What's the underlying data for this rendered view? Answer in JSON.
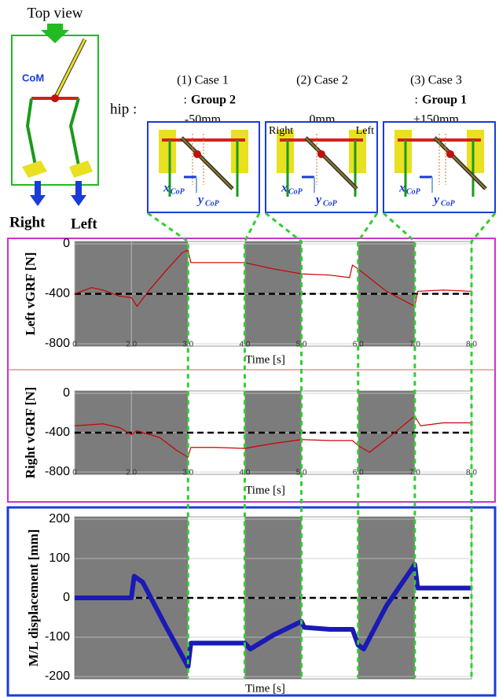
{
  "figure": {
    "top_view": "Top view",
    "com": "CoM",
    "right": "Right",
    "left": "Left",
    "hip": "hip :",
    "cases": [
      {
        "title": "(1)  Case 1",
        "group_prefix": ":",
        "group": "Group 2",
        "offset": "-50mm"
      },
      {
        "title": "(2)  Case 2",
        "offset": "0mm",
        "panel_right": "Right",
        "panel_left": "Left"
      },
      {
        "title": "(3)  Case 3",
        "group_prefix": ":",
        "group": "Group 1",
        "offset": "+150mm"
      }
    ],
    "x_cop": "x",
    "y_cop": "y",
    "cop_sub": "CoP"
  },
  "chart_data": [
    {
      "type": "line",
      "y_label": "Left vGRF [N]",
      "x_label": "Time [s]",
      "color": "#cc0000",
      "x": [
        1,
        1.3,
        1.5,
        1.8,
        2.0,
        2.1,
        2.3,
        2.6,
        2.9,
        3.0,
        3.05,
        3.5,
        4.0,
        4.5,
        5.0,
        5.5,
        5.85,
        5.9,
        6.0,
        6.5,
        7.0,
        7.05,
        7.5,
        8.0
      ],
      "values": [
        -400,
        -350,
        -370,
        -420,
        -430,
        -500,
        -380,
        -220,
        -70,
        -50,
        -150,
        -150,
        -150,
        -200,
        -240,
        -250,
        -270,
        -170,
        -200,
        -380,
        -500,
        -380,
        -370,
        -380
      ],
      "xlim": [
        1,
        8
      ],
      "ylim": [
        -800,
        0
      ],
      "xticks": [
        {
          "value": 1,
          "label": "0"
        },
        {
          "value": 2,
          "label": "2.0"
        },
        {
          "value": 3,
          "label": "3.0"
        },
        {
          "value": 4,
          "label": "4.0"
        },
        {
          "value": 5,
          "label": "5.0"
        },
        {
          "value": 6,
          "label": "6.0"
        },
        {
          "value": 7,
          "label": "7.0"
        },
        {
          "value": 8,
          "label": "8.0"
        }
      ],
      "yticks": [
        0,
        -400,
        -800
      ],
      "reference_line": -400,
      "shaded_intervals": [
        [
          1,
          3
        ],
        [
          4,
          5
        ],
        [
          6,
          7
        ]
      ],
      "grid": true
    },
    {
      "type": "line",
      "y_label": "Right vGRF [N]",
      "x_label": "Time [s]",
      "color": "#cc0000",
      "x": [
        1,
        1.5,
        1.8,
        2.0,
        2.1,
        2.5,
        2.8,
        3.0,
        3.05,
        3.5,
        4.0,
        4.5,
        5.0,
        5.5,
        5.9,
        6.0,
        6.2,
        6.6,
        7.0,
        7.1,
        7.5,
        8.0
      ],
      "values": [
        -330,
        -310,
        -350,
        -420,
        -380,
        -450,
        -580,
        -650,
        -550,
        -550,
        -560,
        -510,
        -470,
        -480,
        -480,
        -530,
        -600,
        -420,
        -230,
        -330,
        -300,
        -300
      ],
      "xlim": [
        1,
        8
      ],
      "ylim": [
        -800,
        0
      ],
      "xticks": [
        {
          "value": 1,
          "label": "0"
        },
        {
          "value": 2,
          "label": "2.0"
        },
        {
          "value": 3,
          "label": "3.0"
        },
        {
          "value": 4,
          "label": "4.0"
        },
        {
          "value": 5,
          "label": "5.0"
        },
        {
          "value": 6,
          "label": "6.0"
        },
        {
          "value": 7,
          "label": "7.0"
        },
        {
          "value": 8,
          "label": "8.0"
        }
      ],
      "yticks": [
        0,
        -400,
        -800
      ],
      "reference_line": -400,
      "shaded_intervals": [
        [
          1,
          3
        ],
        [
          4,
          5
        ],
        [
          6,
          7
        ]
      ],
      "grid": true
    },
    {
      "type": "line",
      "y_label": "M/L displacement  [mm]",
      "x_label": "Time [s]",
      "color": "#1a1ab4",
      "x": [
        1,
        2.0,
        2.05,
        2.2,
        2.6,
        3.0,
        3.05,
        3.5,
        4.0,
        4.1,
        4.5,
        5.0,
        5.05,
        5.5,
        5.9,
        6.0,
        6.1,
        6.5,
        7.0,
        7.05,
        7.5,
        8.0
      ],
      "values": [
        0,
        0,
        55,
        40,
        -70,
        -175,
        -115,
        -115,
        -115,
        -130,
        -95,
        -60,
        -75,
        -80,
        -80,
        -120,
        -130,
        -20,
        85,
        25,
        25,
        25
      ],
      "xlim": [
        1,
        8
      ],
      "ylim": [
        -200,
        200
      ],
      "yticks": [
        200,
        100,
        0,
        -100,
        -200
      ],
      "reference_line": 0,
      "shaded_intervals": [
        [
          1,
          3
        ],
        [
          4,
          5
        ],
        [
          6,
          7
        ]
      ],
      "grid": true
    }
  ]
}
